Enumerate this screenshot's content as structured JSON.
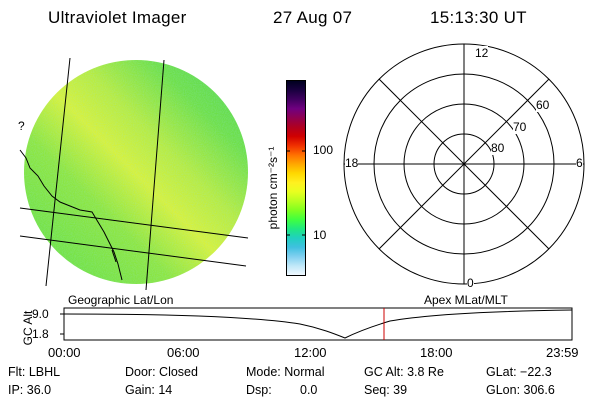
{
  "header": {
    "instrument": "Ultraviolet Imager",
    "date": "27 Aug 07",
    "time": "15:13:30 UT"
  },
  "image_panel": {
    "label": "Geographic Lat/Lon",
    "edge_mark": "?",
    "colors": {
      "disk_base": "#5ee04a",
      "band": "#d8f23a",
      "grid": "#000000"
    }
  },
  "colorbar": {
    "unit_label": "photon cm⁻²s⁻¹",
    "ticks": [
      {
        "label": "100",
        "value": 100
      },
      {
        "label": "10",
        "value": 10
      }
    ],
    "colors": [
      "#000020",
      "#1a0040",
      "#400060",
      "#700080",
      "#900050",
      "#b00020",
      "#d00000",
      "#f03000",
      "#ff7000",
      "#ffa800",
      "#ffd800",
      "#fff020",
      "#e8ff20",
      "#b8ff20",
      "#80ff20",
      "#40ff40",
      "#20e880",
      "#20d0c0",
      "#40c0e0",
      "#80d0f0",
      "#c0e8f8",
      "#f0f8ff"
    ]
  },
  "polar_plot": {
    "label": "Apex MLat/MLT",
    "mlt_labels": {
      "top": "12",
      "left": "18",
      "right": "6",
      "bottom": "0"
    },
    "lat_labels": [
      "60",
      "70",
      "80"
    ]
  },
  "altitude_plot": {
    "axis_title": "GC Alt",
    "y_ticks": [
      "9.0",
      "1.8"
    ],
    "x_ticks": [
      "00:00",
      "06:00",
      "12:00",
      "18:00",
      "23:59"
    ],
    "current_time_marker": "15:13",
    "marker_color": "#cc0000"
  },
  "info": {
    "flt": "Flt: LBHL",
    "ip": "IP: 36.0",
    "door": "Door: Closed",
    "gain": "Gain: 14",
    "mode": "Mode: Normal",
    "dsp": "Dsp:",
    "dsp_value": "0.0",
    "gc_alt": "GC Alt: 3.8 Re",
    "seq": "Seq: 39",
    "glat": "GLat: −22.3",
    "glon": "GLon: 306.6"
  }
}
